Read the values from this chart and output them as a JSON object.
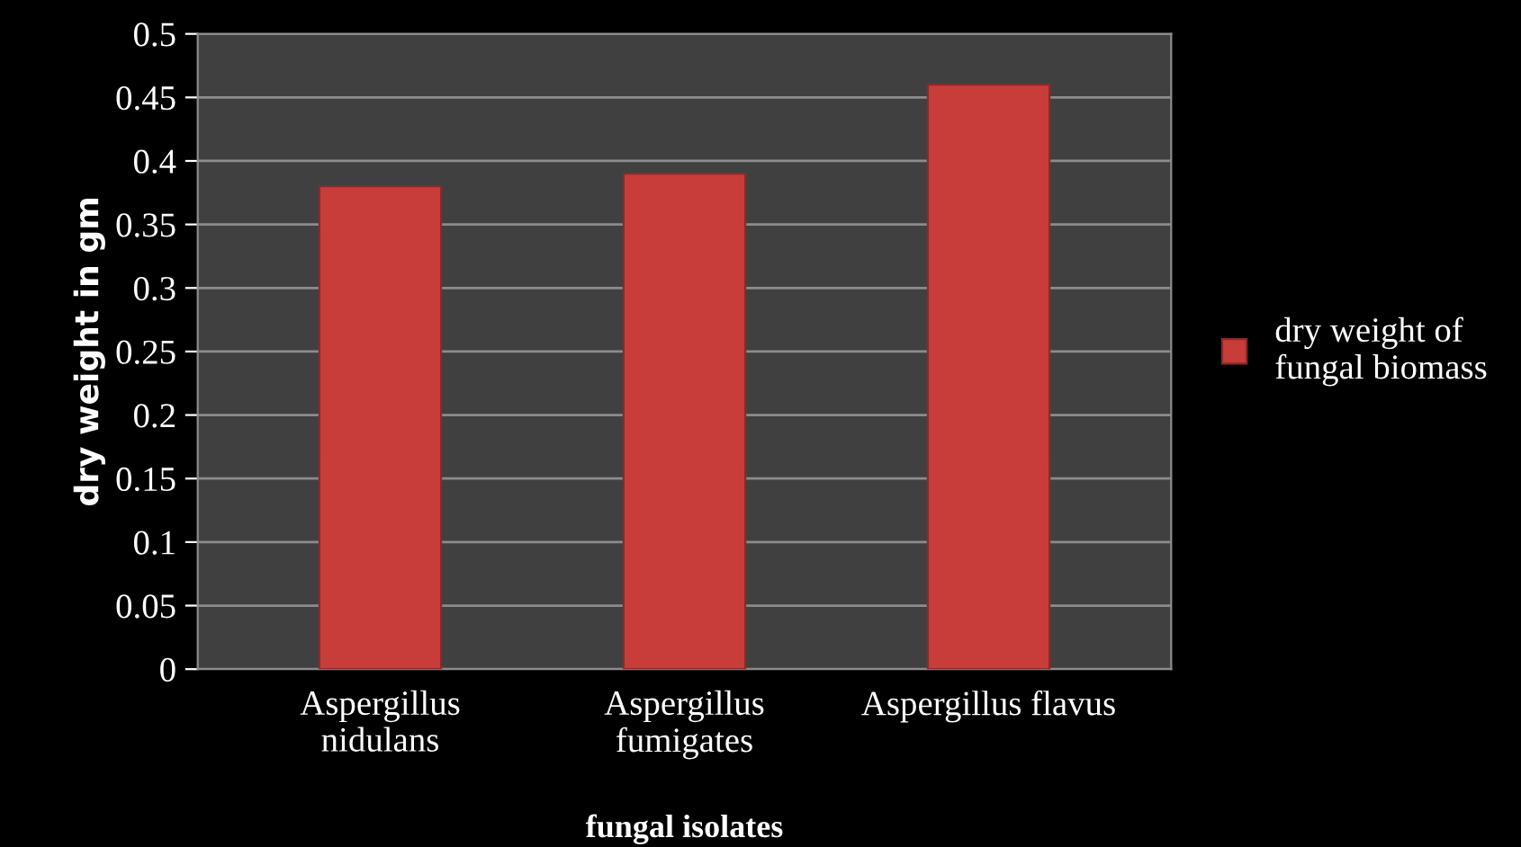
{
  "chart_data": {
    "type": "bar",
    "xlabel": "fungal isolates",
    "ylabel": "dry weight in gm",
    "categories": [
      "Aspergillus\nnidulans",
      "Aspergillus\nfumigates",
      "Aspergillus flavus"
    ],
    "series": [
      {
        "name": "dry weight of\nfungal biomass",
        "color": "#c83c3a",
        "values": [
          0.38,
          0.39,
          0.46
        ]
      }
    ],
    "ylim": [
      0,
      0.5
    ],
    "yticks": [
      0,
      0.05,
      0.1,
      0.15,
      0.2,
      0.25,
      0.3,
      0.35,
      0.4,
      0.45,
      0.5
    ],
    "grid": "y",
    "legend": "right"
  }
}
